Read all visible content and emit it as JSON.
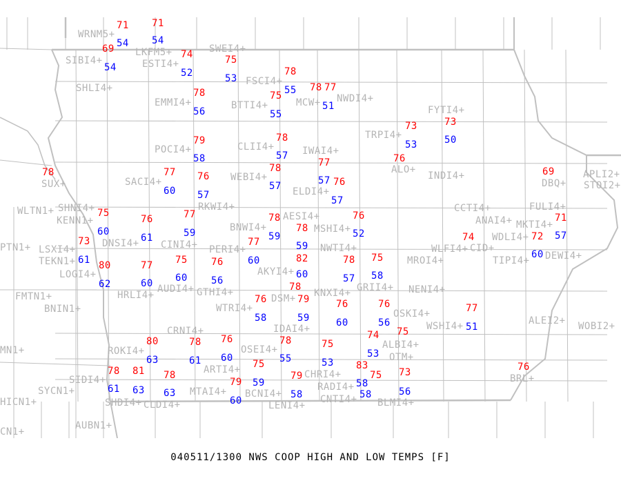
{
  "title": "040511/1300 NWS COOP HIGH AND LOW TEMPS [F]",
  "colors": {
    "high": "#ff0000",
    "low": "#0000ff",
    "station_label": "#b4b4b4",
    "borders": "#c0c0c0"
  },
  "stations": [
    {
      "id": "WRNM5+",
      "high": "71",
      "low": "54"
    },
    {
      "id": "LKFM5+",
      "high": "71",
      "low": "54"
    },
    {
      "id": "SIBI4+",
      "high": "69",
      "low": "54"
    },
    {
      "id": "ESTI4+",
      "high": "74",
      "low": "52"
    },
    {
      "id": "SWEI4+",
      "high": "75",
      "low": "53"
    },
    {
      "id": "SHLI4+"
    },
    {
      "id": "FSCI4+",
      "high": "78",
      "low": "55"
    },
    {
      "id": "MCW+",
      "high": "78"
    },
    {
      "id": "NWDI4+",
      "high": "77",
      "low": "51"
    },
    {
      "id": "EMMI4+",
      "high": "78",
      "low": "56"
    },
    {
      "id": "BTTI4+",
      "high": "75",
      "low": "55"
    },
    {
      "id": "TRPI4+",
      "high": "73",
      "low": "53"
    },
    {
      "id": "FYTI4+",
      "high": "73",
      "low": "50"
    },
    {
      "id": "POCI4+",
      "high": "79",
      "low": "58"
    },
    {
      "id": "CLII4+",
      "high": "78",
      "low": "57"
    },
    {
      "id": "SUX+",
      "high": "78"
    },
    {
      "id": "SACI4+",
      "high": "77",
      "low": "60"
    },
    {
      "id": "RKWI4+",
      "high": "76",
      "low": "57"
    },
    {
      "id": "WEBI4+",
      "high": "78",
      "low": "57"
    },
    {
      "id": "IWAI4+",
      "high": "77",
      "low": "57"
    },
    {
      "id": "ELDI4+",
      "high": "76",
      "low": "57"
    },
    {
      "id": "ALO+",
      "high": "76"
    },
    {
      "id": "INDI4+"
    },
    {
      "id": "DBQ+",
      "high": "69"
    },
    {
      "id": "APLI2+"
    },
    {
      "id": "STOI2+"
    },
    {
      "id": "WLTN1+"
    },
    {
      "id": "KENN1+"
    },
    {
      "id": "SHNI4+",
      "high": "75",
      "low": "60"
    },
    {
      "id": "DNSI4+",
      "high": "76",
      "low": "61"
    },
    {
      "id": "CINI4+",
      "high": "77",
      "low": "59"
    },
    {
      "id": "CCTI4+"
    },
    {
      "id": "ANAI4+"
    },
    {
      "id": "FULI4+"
    },
    {
      "id": "MKTI4+",
      "high": "71",
      "low": "57"
    },
    {
      "id": "BNWI4+",
      "high": "78",
      "low": "59"
    },
    {
      "id": "AESI4+",
      "high": "78",
      "low": "59"
    },
    {
      "id": "MSHI4+",
      "high": "76",
      "low": "52"
    },
    {
      "id": "PTN1+"
    },
    {
      "id": "LSXI4+",
      "high": "73",
      "low": "61"
    },
    {
      "id": "TEKN1+"
    },
    {
      "id": "PERI4+",
      "high": "77",
      "low": "60"
    },
    {
      "id": "WLFI4+"
    },
    {
      "id": "CID+",
      "high": "74"
    },
    {
      "id": "TIPI4+"
    },
    {
      "id": "WDLI4+",
      "high": "72",
      "low": "60"
    },
    {
      "id": "DEWI4+"
    },
    {
      "id": "MROI4+"
    },
    {
      "id": "AKYI4+",
      "high": "82",
      "low": "60"
    },
    {
      "id": "LOGI4+",
      "high": "80",
      "low": "62"
    },
    {
      "id": "HRLI4+",
      "high": "77",
      "low": "60"
    },
    {
      "id": "AUDI4+",
      "high": "75",
      "low": "60"
    },
    {
      "id": "GTHI4+",
      "high": "76",
      "low": "56"
    },
    {
      "id": "NWTI4+",
      "high": "78",
      "low": "57"
    },
    {
      "id": "GRII4+",
      "high": "75",
      "low": "58"
    },
    {
      "id": "DSM+",
      "high": "78"
    },
    {
      "id": "FMTN1+"
    },
    {
      "id": "BNIN1+"
    },
    {
      "id": "NENI4+"
    },
    {
      "id": "WTRI4+",
      "high": "76",
      "low": "58"
    },
    {
      "id": "IDAI4+",
      "high": "79",
      "low": "59"
    },
    {
      "id": "KNXI4+",
      "high": "76",
      "low": "60"
    },
    {
      "id": "OSKI4+",
      "high": "76",
      "low": "56"
    },
    {
      "id": "WSHI4+",
      "high": "77",
      "low": "51"
    },
    {
      "id": "ALEI2+"
    },
    {
      "id": "WOBI2+"
    },
    {
      "id": "MN1+"
    },
    {
      "id": "ROKI4+",
      "high": "80",
      "low": "63"
    },
    {
      "id": "CRNI4+",
      "high": "78",
      "low": "61"
    },
    {
      "id": "ARTI4+",
      "high": "76",
      "low": "60"
    },
    {
      "id": "OSEI4+",
      "high": "78",
      "low": "55"
    },
    {
      "id": "CHRI4+",
      "high": "75",
      "low": "53"
    },
    {
      "id": "ALBI4+",
      "high": "74",
      "low": "53"
    },
    {
      "id": "OTM+",
      "high": "75"
    },
    {
      "id": "BCNI4+",
      "high": "75",
      "low": "59"
    },
    {
      "id": "SIDI4+",
      "high": "78",
      "low": "61"
    },
    {
      "id": "SHDI4+",
      "high": "81",
      "low": "63"
    },
    {
      "id": "CLDI4+",
      "high": "78",
      "low": "63"
    },
    {
      "id": "MTAI4+",
      "high": "79",
      "low": "60"
    },
    {
      "id": "LENI4+",
      "high": "79",
      "low": "58"
    },
    {
      "id": "RADI4+",
      "high": "83",
      "low": "58"
    },
    {
      "id": "CNTI4+",
      "high": "75",
      "low": "58"
    },
    {
      "id": "BLMI4+",
      "high": "73",
      "low": "56"
    },
    {
      "id": "BRL+",
      "high": "76"
    },
    {
      "id": "SYCN1+"
    },
    {
      "id": "HICN1+"
    },
    {
      "id": "AUBN1+"
    },
    {
      "id": "CN1+"
    }
  ]
}
